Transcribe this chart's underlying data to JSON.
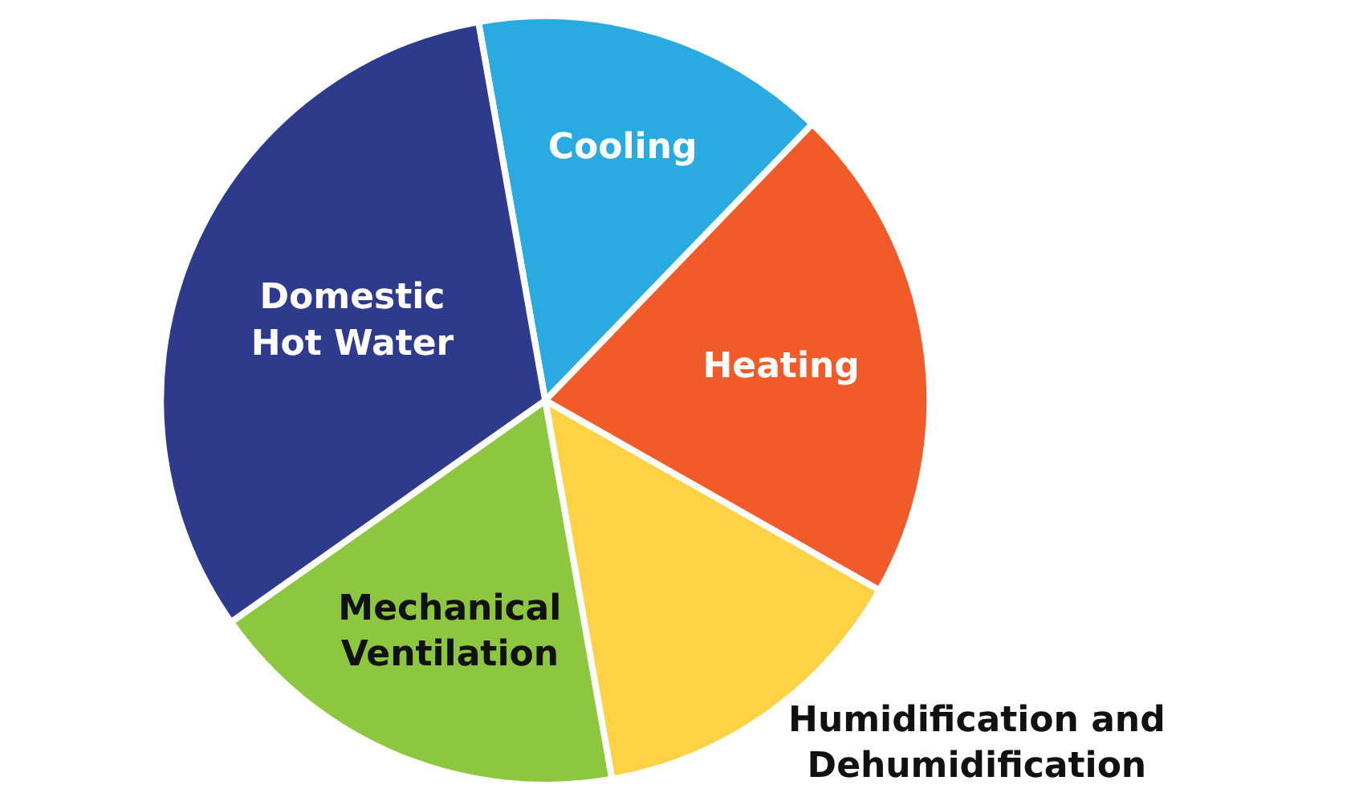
{
  "chart_data": {
    "type": "pie",
    "categories": [
      "Cooling",
      "Heating",
      "Humidification and\nDehumidification",
      "Mechanical\nVentilation",
      "Domestic\nHot Water"
    ],
    "values": [
      15,
      21,
      14,
      18,
      32
    ],
    "colors": [
      "#29abe2",
      "#f15a29",
      "#ffd145",
      "#8dc63f",
      "#2e3a8c"
    ],
    "legend": false
  }
}
